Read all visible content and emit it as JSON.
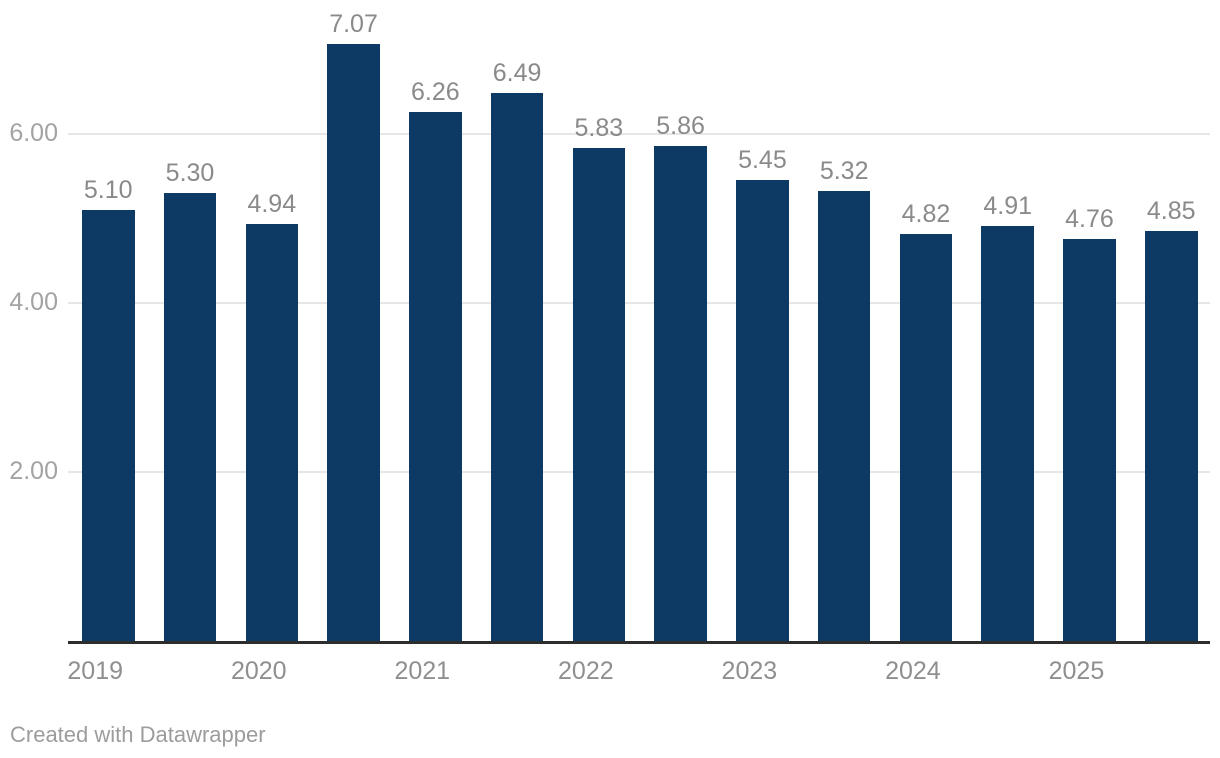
{
  "chart_data": {
    "type": "bar",
    "title": "",
    "x_tick_labels": [
      "2019",
      "2020",
      "2021",
      "2022",
      "2023",
      "2024",
      "2025"
    ],
    "bars_per_year": 2,
    "values": [
      5.1,
      5.3,
      4.94,
      7.07,
      6.26,
      6.49,
      5.83,
      5.86,
      5.45,
      5.32,
      4.82,
      4.91,
      4.76,
      4.85
    ],
    "value_labels": [
      "5.10",
      "5.30",
      "4.94",
      "7.07",
      "6.26",
      "6.49",
      "5.83",
      "5.86",
      "5.45",
      "5.32",
      "4.82",
      "4.91",
      "4.76",
      "4.85"
    ],
    "y_ticks": [
      {
        "value": 2,
        "label": "2.00"
      },
      {
        "value": 4,
        "label": "4.00"
      },
      {
        "value": 6,
        "label": "6.00"
      }
    ],
    "ylim": [
      0,
      7.2
    ],
    "grid": "horizontal",
    "legend": "none",
    "colors": {
      "bar": "#0d3a64",
      "value_label": "#8a8a8a",
      "y_tick_label": "#a3a3a3",
      "x_tick_label": "#8f8f8f",
      "gridline": "#e6e6e6",
      "axis_line": "#2d2d2d"
    }
  },
  "footer": {
    "credit_text": "Created with Datawrapper"
  }
}
